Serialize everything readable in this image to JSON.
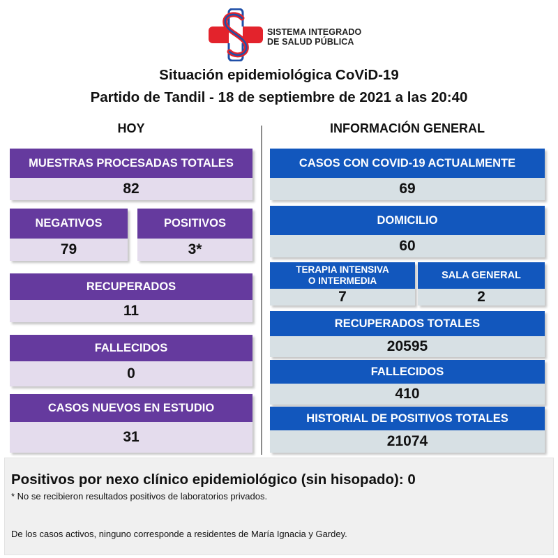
{
  "header": {
    "org_line1": "SISTEMA INTEGRADO",
    "org_line2": "DE SALUD PÚBLICA",
    "title_line1": "Situación epidemiológica CoViD-19",
    "title_line2": "Partido de Tandil - 18 de septiembre de 2021 a las 20:40",
    "logo_icon": "cross-s-logo-icon"
  },
  "hoy": {
    "heading": "HOY",
    "muestras": {
      "label": "MUESTRAS PROCESADAS TOTALES",
      "value": "82"
    },
    "negativos": {
      "label": "NEGATIVOS",
      "value": "79"
    },
    "positivos": {
      "label": "POSITIVOS",
      "value": "3*"
    },
    "recuperados": {
      "label": "RECUPERADOS",
      "value": "11"
    },
    "fallecidos": {
      "label": "FALLECIDOS",
      "value": "0"
    },
    "casos_nuevos": {
      "label": "CASOS NUEVOS EN ESTUDIO",
      "value": "31"
    }
  },
  "general": {
    "heading": "INFORMACIÓN GENERAL",
    "casos_actuales": {
      "label": "CASOS CON COVID-19 ACTUALMENTE",
      "value": "69"
    },
    "domicilio": {
      "label": "DOMICILIO",
      "value": "60"
    },
    "terapia": {
      "label_line1": "TERAPIA INTENSIVA",
      "label_line2": "O INTERMEDIA",
      "value": "7"
    },
    "sala_general": {
      "label": "SALA GENERAL",
      "value": "2"
    },
    "recuperados_totales": {
      "label": "RECUPERADOS TOTALES",
      "value": "20595"
    },
    "fallecidos": {
      "label": "FALLECIDOS",
      "value": "410"
    },
    "historial": {
      "label": "HISTORIAL DE POSITIVOS TOTALES",
      "value": "21074"
    }
  },
  "footer": {
    "nexo": "Positivos por nexo clínico epidemiológico (sin hisopado): 0",
    "note_private": "* No se recibieron resultados positivos de laboratorios privados.",
    "note_residents": "De los casos activos, ninguno corresponde a residentes de María Ignacia y Gardey."
  },
  "colors": {
    "purple_header": "#653a9e",
    "purple_value": "#e4dced",
    "blue_header": "#1257bd",
    "blue_value": "#d7e0e4",
    "logo_red": "#e3232c",
    "logo_blue": "#1f4fa8"
  }
}
